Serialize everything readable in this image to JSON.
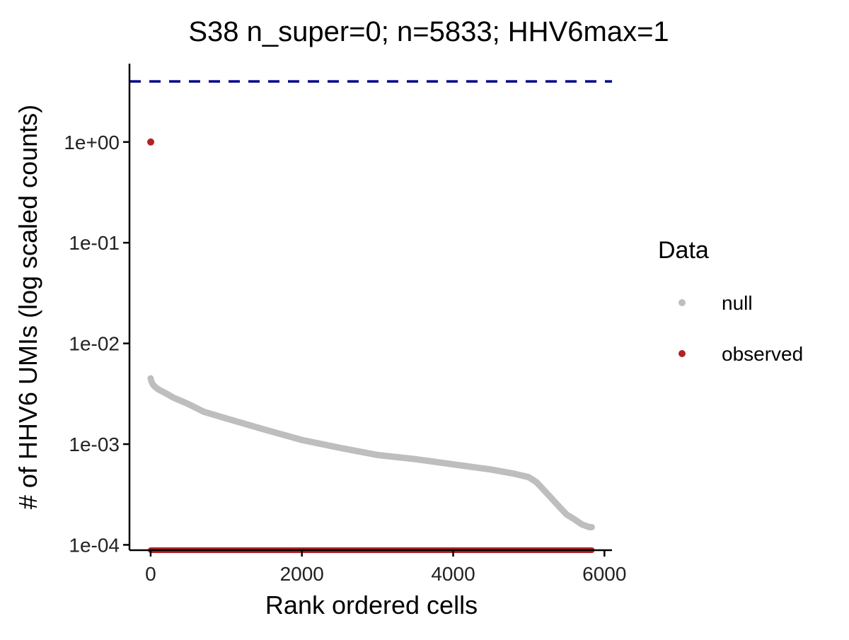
{
  "chart_data": {
    "type": "scatter",
    "title": "S38 n_super=0; n=5833; HHV6max=1",
    "xlabel": "Rank ordered cells",
    "ylabel": "# of HHV6 UMIs (log scaled counts)",
    "x_scale": "linear",
    "y_scale": "log10",
    "xlim": [
      -280,
      6100
    ],
    "ylim": [
      8.85e-05,
      6.0
    ],
    "x_ticks": [
      0,
      2000,
      4000,
      6000
    ],
    "x_tick_labels": [
      "0",
      "2000",
      "4000",
      "6000"
    ],
    "y_ticks": [
      0.0001,
      0.001,
      0.01,
      0.1,
      1
    ],
    "y_tick_labels": [
      "1e-04",
      "1e-03",
      "1e-02",
      "1e-01",
      "1e+00"
    ],
    "grid": false,
    "legend": {
      "title": "Data",
      "position": "right",
      "entries": [
        "null",
        "observed"
      ]
    },
    "reference_line": {
      "type": "horizontal",
      "y": 4.0,
      "style": "dashed",
      "color": "#00008B"
    },
    "colors": {
      "null": "#BEBEBE",
      "observed": "#B22222",
      "reference": "#00008B"
    },
    "series": [
      {
        "name": "null",
        "n_points": 5833,
        "curve_x": [
          0,
          10,
          30,
          60,
          100,
          200,
          300,
          500,
          700,
          1000,
          1500,
          2000,
          2500,
          3000,
          3500,
          4000,
          4500,
          4800,
          5000,
          5100,
          5200,
          5300,
          5400,
          5500,
          5600,
          5700,
          5800,
          5833
        ],
        "curve_y": [
          0.0045,
          0.0042,
          0.0039,
          0.0037,
          0.0035,
          0.0032,
          0.0029,
          0.0025,
          0.0021,
          0.0018,
          0.0014,
          0.0011,
          0.00092,
          0.00078,
          0.00071,
          0.00063,
          0.00056,
          0.00051,
          0.00047,
          0.00042,
          0.00035,
          0.00029,
          0.00024,
          0.0002,
          0.00018,
          0.00016,
          0.00015,
          0.00015
        ]
      },
      {
        "name": "observed",
        "n_points": 5833,
        "points": [
          {
            "x": 1,
            "y": 1
          }
        ],
        "floor_range": [
          2,
          5833
        ],
        "floor_note": "remaining cells have 0 counts, drawn at the bottom of the log axis"
      }
    ]
  }
}
